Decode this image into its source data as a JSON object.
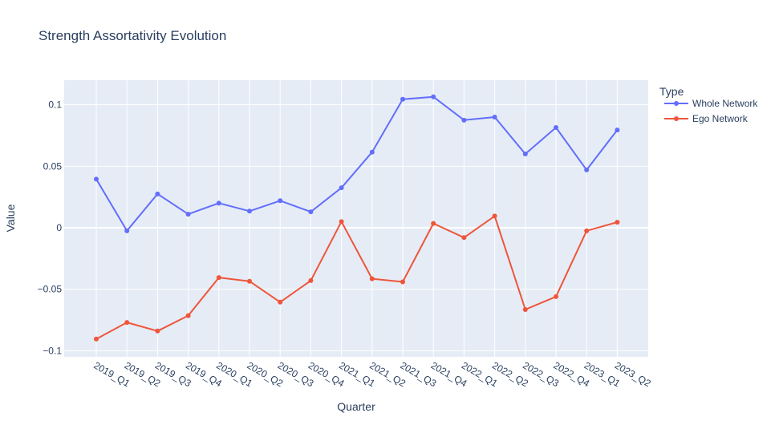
{
  "chart_data": {
    "type": "line",
    "title": "Strength Assortativity Evolution",
    "xlabel": "Quarter",
    "ylabel": "Value",
    "categories": [
      "2019_Q1",
      "2019_Q2",
      "2019_Q3",
      "2019_Q4",
      "2020_Q1",
      "2020_Q2",
      "2020_Q3",
      "2020_Q4",
      "2021_Q1",
      "2021_Q2",
      "2021_Q3",
      "2021_Q4",
      "2022_Q1",
      "2022_Q2",
      "2022_Q3",
      "2022_Q4",
      "2023_Q1",
      "2023_Q2"
    ],
    "ylim": [
      -0.105,
      0.12
    ],
    "yticks": [
      -0.1,
      -0.05,
      0,
      0.05,
      0.1
    ],
    "ytick_labels": [
      "−0.1",
      "−0.05",
      "0",
      "0.05",
      "0.1"
    ],
    "grid": true,
    "legend": {
      "title": "Type",
      "placement": "top-right"
    },
    "series": [
      {
        "name": "Whole Network",
        "color": "#636efa",
        "values": [
          0.0395,
          -0.0025,
          0.0275,
          0.011,
          0.02,
          0.0135,
          0.022,
          0.013,
          0.0325,
          0.0615,
          0.1045,
          0.1065,
          0.0875,
          0.09,
          0.06,
          0.0815,
          0.047,
          0.0795
        ]
      },
      {
        "name": "Ego Network",
        "color": "#ef553b",
        "values": [
          -0.0905,
          -0.077,
          -0.084,
          -0.0715,
          -0.0405,
          -0.0435,
          -0.0605,
          -0.043,
          0.005,
          -0.0415,
          -0.044,
          0.0035,
          -0.008,
          0.0095,
          -0.0665,
          -0.056,
          -0.0025,
          0.0045
        ]
      }
    ]
  }
}
